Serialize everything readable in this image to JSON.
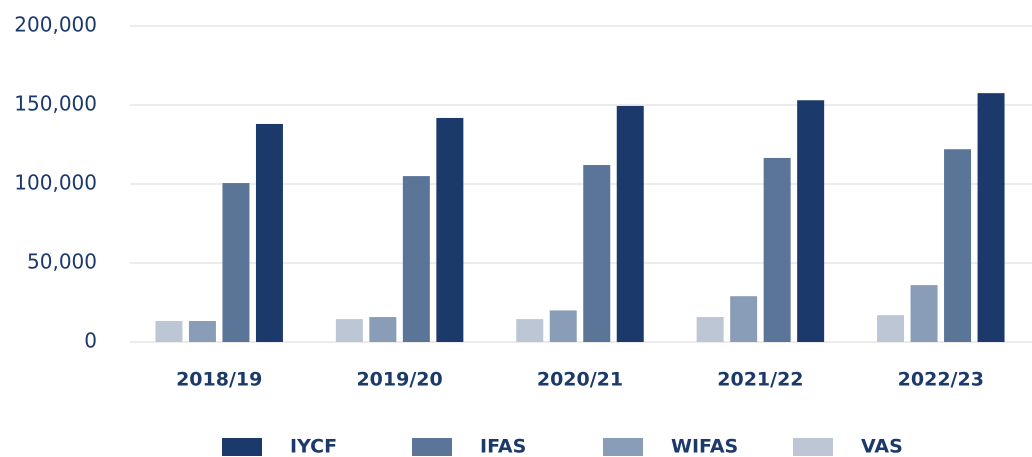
{
  "chart_data": {
    "type": "bar",
    "categories": [
      "2018/19",
      "2019/20",
      "2020/21",
      "2021/22",
      "2022/23"
    ],
    "series": [
      {
        "name": "IYCF",
        "color": "#1b3a6b",
        "values": [
          138000,
          141800,
          149400,
          153000,
          157500
        ]
      },
      {
        "name": "IFAS",
        "color": "#5b7599",
        "values": [
          100600,
          105000,
          112000,
          116500,
          122000
        ]
      },
      {
        "name": "WIFAS",
        "color": "#8a9db8",
        "values": [
          13300,
          15800,
          20000,
          29000,
          36000
        ]
      },
      {
        "name": "VAS",
        "color": "#bcc6d4",
        "values": [
          13300,
          14500,
          14500,
          15800,
          17000
        ]
      }
    ],
    "ylim": [
      0,
      200000
    ],
    "yticks": [
      0,
      {
        "value": 50000,
        "label": "50,000"
      },
      {
        "value": 100000,
        "label": "100,000"
      },
      {
        "value": 150000,
        "label": "150,000"
      },
      {
        "value": 200000,
        "label": "200,000"
      }
    ],
    "grid": true,
    "legend": "bottom"
  }
}
